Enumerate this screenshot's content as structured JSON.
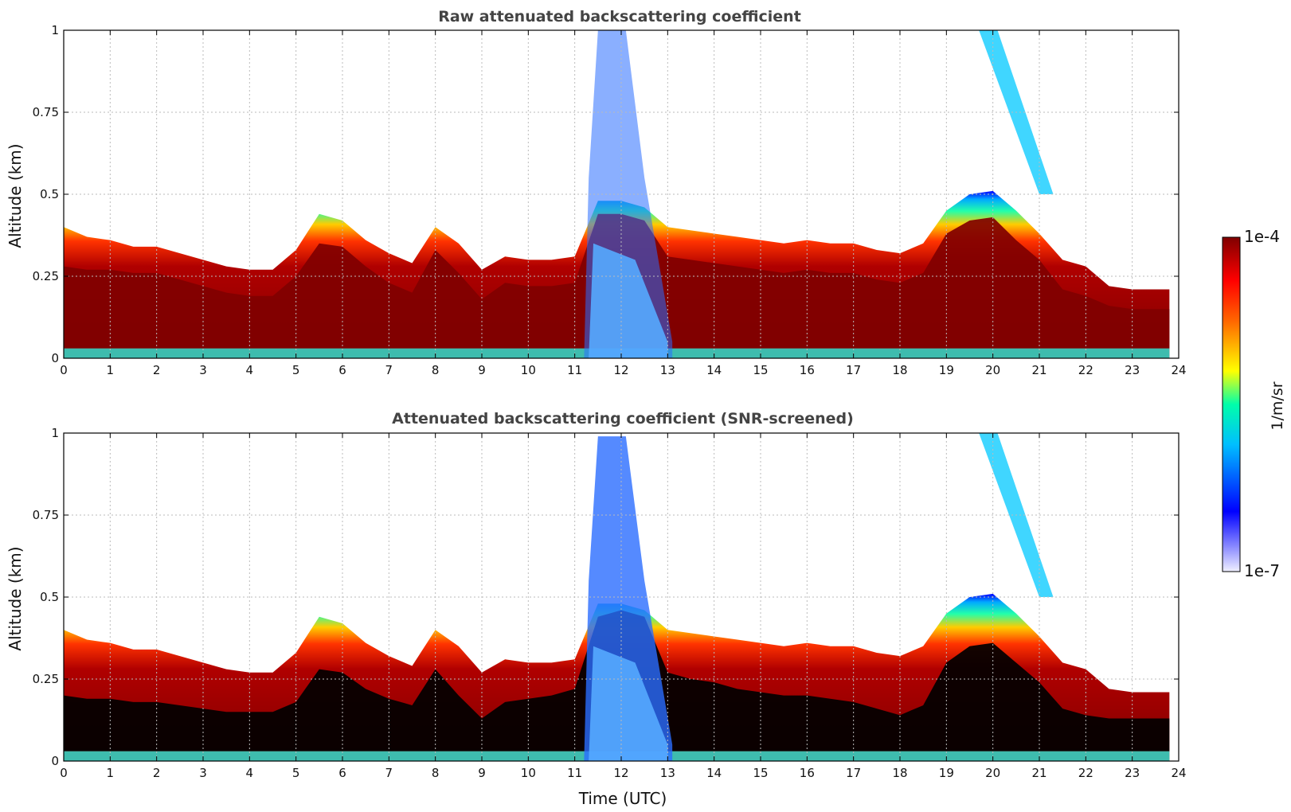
{
  "figure": {
    "x_axis_label": "Time (UTC)",
    "colorbar": {
      "label": "1/m/sr",
      "max_label": "1e-4",
      "min_label": "1e-7",
      "scale": "log",
      "colormap": "jet (white → blue → cyan → yellow → red → dark red)",
      "colors": [
        "#f0f0ff",
        "#0000ff",
        "#00bfff",
        "#00ffaa",
        "#ffff00",
        "#ff6600",
        "#ff0000",
        "#800000"
      ]
    }
  },
  "chart_data": [
    {
      "type": "heatmap",
      "title": "Raw attenuated backscattering coefficient",
      "xlabel": "",
      "ylabel": "Altitude (km)",
      "xlim": [
        0,
        24
      ],
      "ylim": [
        0,
        1
      ],
      "xticks": [
        "0",
        "1",
        "2",
        "3",
        "4",
        "5",
        "6",
        "7",
        "8",
        "9",
        "10",
        "11",
        "12",
        "13",
        "14",
        "15",
        "16",
        "17",
        "18",
        "19",
        "20",
        "21",
        "22",
        "23",
        "24"
      ],
      "yticks": [
        "0",
        "0.25",
        "0.5",
        "0.75",
        "1"
      ],
      "grid": true,
      "time_hours": [
        0,
        0.5,
        1,
        1.5,
        2,
        2.5,
        3,
        3.5,
        4,
        4.5,
        5,
        5.5,
        6,
        6.5,
        7,
        7.5,
        8,
        8.5,
        9,
        9.5,
        10,
        10.5,
        11,
        11.5,
        12,
        12.5,
        13,
        13.5,
        14,
        14.5,
        15,
        15.5,
        16,
        16.5,
        17,
        17.5,
        18,
        18.5,
        19,
        19.5,
        20,
        20.5,
        21,
        21.5,
        22,
        22.5,
        23,
        23.8
      ],
      "layer_top_km": [
        0.4,
        0.37,
        0.36,
        0.34,
        0.34,
        0.32,
        0.3,
        0.28,
        0.27,
        0.27,
        0.33,
        0.44,
        0.42,
        0.36,
        0.32,
        0.29,
        0.4,
        0.35,
        0.27,
        0.31,
        0.3,
        0.3,
        0.31,
        0.48,
        0.48,
        0.46,
        0.4,
        0.39,
        0.38,
        0.37,
        0.36,
        0.35,
        0.36,
        0.35,
        0.35,
        0.33,
        0.32,
        0.35,
        0.45,
        0.5,
        0.51,
        0.45,
        0.38,
        0.3,
        0.28,
        0.22,
        0.21,
        0.21
      ],
      "saturated_layer_top_km": [
        0.28,
        0.27,
        0.27,
        0.26,
        0.26,
        0.24,
        0.22,
        0.2,
        0.19,
        0.19,
        0.25,
        0.35,
        0.34,
        0.28,
        0.23,
        0.2,
        0.33,
        0.26,
        0.18,
        0.23,
        0.22,
        0.22,
        0.23,
        0.44,
        0.44,
        0.42,
        0.31,
        0.3,
        0.29,
        0.28,
        0.27,
        0.26,
        0.27,
        0.26,
        0.26,
        0.24,
        0.23,
        0.26,
        0.38,
        0.42,
        0.43,
        0.36,
        0.3,
        0.21,
        0.19,
        0.16,
        0.15,
        0.15
      ]
    },
    {
      "type": "heatmap",
      "title": "Attenuated backscattering coefficient (SNR-screened)",
      "xlabel": "Time (UTC)",
      "ylabel": "Altitude (km)",
      "xlim": [
        0,
        24
      ],
      "ylim": [
        0,
        1
      ],
      "xticks": [
        "0",
        "1",
        "2",
        "3",
        "4",
        "5",
        "6",
        "7",
        "8",
        "9",
        "10",
        "11",
        "12",
        "13",
        "14",
        "15",
        "16",
        "17",
        "18",
        "19",
        "20",
        "21",
        "22",
        "23",
        "24"
      ],
      "yticks": [
        "0",
        "0.25",
        "0.5",
        "0.75",
        "1"
      ],
      "grid": true,
      "time_hours": [
        0,
        0.5,
        1,
        1.5,
        2,
        2.5,
        3,
        3.5,
        4,
        4.5,
        5,
        5.5,
        6,
        6.5,
        7,
        7.5,
        8,
        8.5,
        9,
        9.5,
        10,
        10.5,
        11,
        11.5,
        12,
        12.5,
        13,
        13.5,
        14,
        14.5,
        15,
        15.5,
        16,
        16.5,
        17,
        17.5,
        18,
        18.5,
        19,
        19.5,
        20,
        20.5,
        21,
        21.5,
        22,
        22.5,
        23,
        23.8
      ],
      "layer_top_km": [
        0.4,
        0.37,
        0.36,
        0.34,
        0.34,
        0.32,
        0.3,
        0.28,
        0.27,
        0.27,
        0.33,
        0.44,
        0.42,
        0.36,
        0.32,
        0.29,
        0.4,
        0.35,
        0.27,
        0.31,
        0.3,
        0.3,
        0.31,
        0.48,
        0.48,
        0.46,
        0.4,
        0.39,
        0.38,
        0.37,
        0.36,
        0.35,
        0.36,
        0.35,
        0.35,
        0.33,
        0.32,
        0.35,
        0.45,
        0.5,
        0.51,
        0.45,
        0.38,
        0.3,
        0.28,
        0.22,
        0.21,
        0.21
      ],
      "saturated_layer_top_km": [
        0.2,
        0.19,
        0.19,
        0.18,
        0.18,
        0.17,
        0.16,
        0.15,
        0.15,
        0.15,
        0.18,
        0.28,
        0.27,
        0.22,
        0.19,
        0.17,
        0.28,
        0.2,
        0.13,
        0.18,
        0.19,
        0.2,
        0.22,
        0.44,
        0.46,
        0.44,
        0.27,
        0.25,
        0.24,
        0.22,
        0.21,
        0.2,
        0.2,
        0.19,
        0.18,
        0.16,
        0.14,
        0.17,
        0.3,
        0.35,
        0.36,
        0.3,
        0.24,
        0.16,
        0.14,
        0.13,
        0.13,
        0.13
      ],
      "note_colors": {
        "saturated": "#000000"
      }
    }
  ]
}
